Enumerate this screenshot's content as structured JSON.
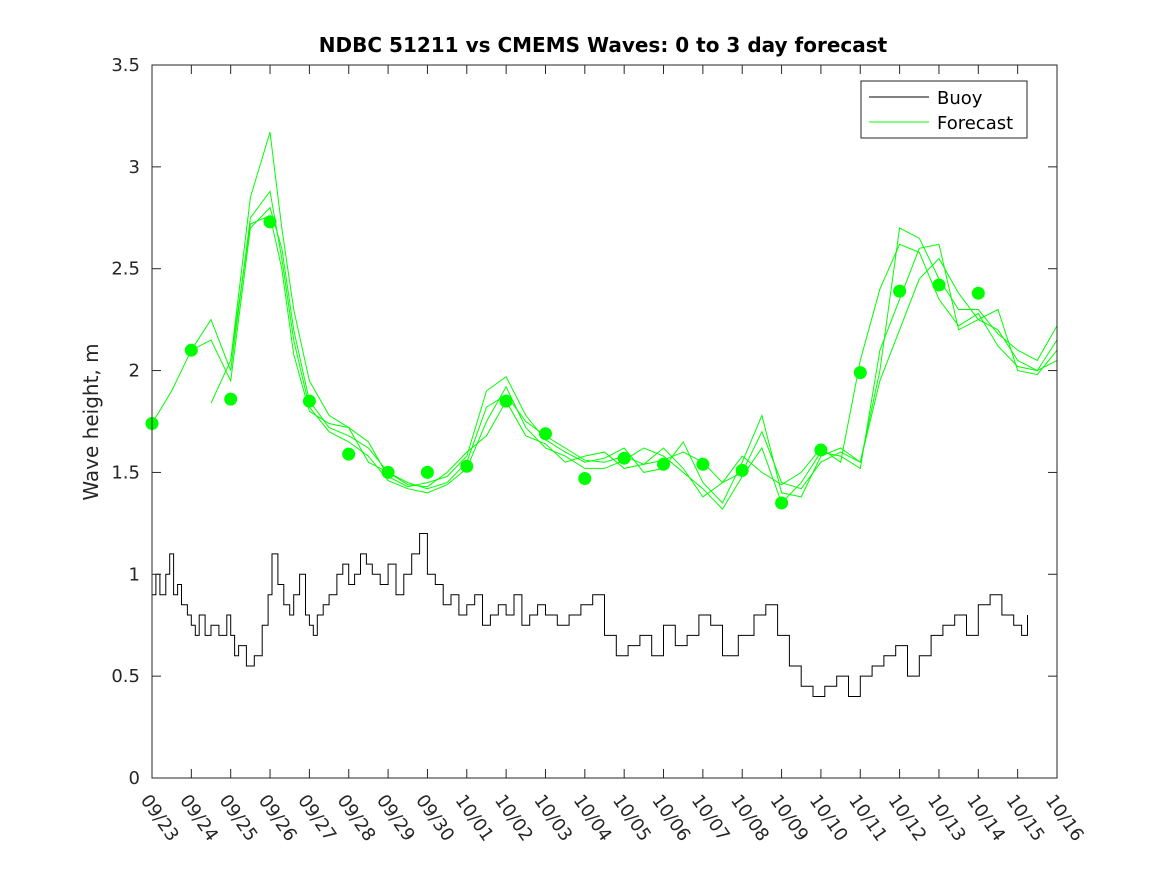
{
  "chart_data": {
    "type": "line",
    "title": "NDBC 51211 vs CMEMS Waves: 0 to 3 day forecast",
    "xlabel": "",
    "ylabel": "Wave height, m",
    "xlim": [
      "09/23",
      "10/16"
    ],
    "ylim": [
      0,
      3.5
    ],
    "yticks": [
      "0",
      "0.5",
      "1",
      "1.5",
      "2",
      "2.5",
      "3",
      "3.5"
    ],
    "xticks": [
      "09/23",
      "09/24",
      "09/25",
      "09/26",
      "09/27",
      "09/28",
      "09/29",
      "09/30",
      "10/01",
      "10/02",
      "10/03",
      "10/04",
      "10/05",
      "10/06",
      "10/07",
      "10/08",
      "10/09",
      "10/10",
      "10/11",
      "10/12",
      "10/13",
      "10/14",
      "10/15",
      "10/16"
    ],
    "grid": false,
    "legend": {
      "position": "top-right",
      "entries": [
        "Buoy",
        "Forecast"
      ]
    },
    "colors": {
      "buoy": "#000000",
      "forecast": "#00ff00"
    },
    "series": [
      {
        "name": "Buoy",
        "style": "step",
        "x": [
          0,
          0.1,
          0.2,
          0.35,
          0.45,
          0.55,
          0.65,
          0.75,
          0.9,
          1.0,
          1.1,
          1.2,
          1.35,
          1.5,
          1.7,
          1.9,
          2.0,
          2.1,
          2.2,
          2.4,
          2.6,
          2.8,
          2.95,
          3.05,
          3.2,
          3.35,
          3.5,
          3.6,
          3.75,
          3.9,
          4.0,
          4.1,
          4.2,
          4.35,
          4.5,
          4.7,
          4.85,
          5.0,
          5.15,
          5.3,
          5.45,
          5.6,
          5.8,
          6.0,
          6.2,
          6.4,
          6.6,
          6.8,
          7.0,
          7.2,
          7.4,
          7.6,
          7.8,
          8.0,
          8.2,
          8.4,
          8.6,
          8.8,
          9.0,
          9.2,
          9.4,
          9.6,
          9.8,
          10.0,
          10.3,
          10.6,
          10.9,
          11.2,
          11.5,
          11.8,
          12.1,
          12.4,
          12.7,
          13.0,
          13.3,
          13.6,
          13.9,
          14.2,
          14.5,
          14.9,
          15.3,
          15.6,
          15.9,
          16.2,
          16.5,
          16.8,
          17.1,
          17.4,
          17.7,
          18.0,
          18.3,
          18.6,
          18.9,
          19.2,
          19.5,
          19.8,
          20.1,
          20.4,
          20.7,
          21.0,
          21.3,
          21.6,
          21.9,
          22.1,
          22.25
        ],
        "y": [
          0.9,
          1.0,
          0.9,
          1.0,
          1.1,
          0.9,
          0.95,
          0.85,
          0.8,
          0.75,
          0.7,
          0.8,
          0.7,
          0.75,
          0.7,
          0.8,
          0.7,
          0.6,
          0.65,
          0.55,
          0.6,
          0.75,
          0.9,
          1.1,
          0.95,
          0.85,
          0.8,
          0.9,
          1.0,
          0.8,
          0.75,
          0.7,
          0.8,
          0.85,
          0.9,
          1.0,
          1.05,
          0.95,
          1.0,
          1.1,
          1.05,
          1.0,
          0.95,
          1.05,
          0.9,
          1.0,
          1.1,
          1.2,
          1.0,
          0.95,
          0.85,
          0.9,
          0.8,
          0.85,
          0.9,
          0.75,
          0.8,
          0.85,
          0.8,
          0.9,
          0.75,
          0.8,
          0.85,
          0.8,
          0.75,
          0.8,
          0.85,
          0.9,
          0.7,
          0.6,
          0.65,
          0.7,
          0.6,
          0.75,
          0.65,
          0.7,
          0.8,
          0.75,
          0.6,
          0.7,
          0.8,
          0.85,
          0.7,
          0.55,
          0.45,
          0.4,
          0.45,
          0.5,
          0.4,
          0.5,
          0.55,
          0.6,
          0.65,
          0.5,
          0.6,
          0.7,
          0.75,
          0.8,
          0.7,
          0.85,
          0.9,
          0.8,
          0.75,
          0.7,
          0.8
        ]
      },
      {
        "name": "Forecast",
        "x": [
          0,
          0.5,
          1.0,
          1.5,
          2.0,
          2.5,
          3.0,
          3.3,
          3.6,
          4.0,
          4.5,
          5.0,
          5.5,
          6.0,
          6.5,
          7.0,
          7.5,
          8.0,
          8.5,
          9.0,
          9.5,
          10.0,
          10.5,
          11.0,
          11.5,
          12.0,
          12.5,
          13.0,
          13.5,
          14.0,
          14.5,
          15.0,
          15.5,
          16.0,
          16.5,
          17.0,
          17.5,
          18.0,
          18.5,
          19.0,
          19.5,
          20.0,
          20.5,
          21.0,
          21.5,
          22.0,
          22.5,
          23.0
        ],
        "y": [
          1.74,
          1.9,
          2.1,
          2.15,
          1.95,
          2.7,
          2.8,
          2.6,
          2.2,
          1.85,
          1.72,
          1.68,
          1.62,
          1.5,
          1.45,
          1.42,
          1.45,
          1.55,
          1.82,
          1.88,
          1.75,
          1.68,
          1.62,
          1.56,
          1.55,
          1.58,
          1.54,
          1.56,
          1.6,
          1.55,
          1.45,
          1.5,
          1.7,
          1.45,
          1.42,
          1.55,
          1.6,
          1.55,
          1.95,
          2.2,
          2.45,
          2.55,
          2.38,
          2.25,
          2.2,
          2.05,
          2.0,
          2.15
        ]
      },
      {
        "name": "Forecast",
        "x": [
          2.0,
          2.5,
          3.0,
          3.3,
          3.6,
          4.0,
          4.5,
          5.0,
          5.5,
          6.0,
          6.5,
          7.0,
          7.5,
          8.0,
          8.5,
          9.0,
          9.5,
          10.0,
          10.5,
          11.0,
          11.5,
          12.0,
          12.5,
          13.0,
          13.5,
          14.0,
          14.5,
          15.0,
          15.5,
          16.0,
          16.5,
          17.0,
          17.5,
          18.0,
          18.5,
          19.0,
          19.5,
          20.0,
          20.5,
          21.0,
          21.5,
          22.0,
          22.5,
          23.0
        ],
        "y": [
          2.05,
          2.85,
          3.17,
          2.7,
          2.3,
          1.95,
          1.78,
          1.72,
          1.65,
          1.48,
          1.43,
          1.45,
          1.48,
          1.58,
          1.9,
          1.97,
          1.78,
          1.66,
          1.6,
          1.55,
          1.57,
          1.62,
          1.5,
          1.52,
          1.65,
          1.45,
          1.35,
          1.55,
          1.78,
          1.4,
          1.38,
          1.58,
          1.62,
          1.55,
          2.0,
          2.7,
          2.65,
          2.45,
          2.3,
          2.3,
          2.18,
          2.1,
          2.05,
          2.22
        ]
      },
      {
        "name": "Forecast",
        "x": [
          1.0,
          1.5,
          2.0,
          2.5,
          3.0,
          3.3,
          3.6,
          4.0,
          4.5,
          5.0,
          5.5,
          6.0,
          6.5,
          7.0,
          7.5,
          8.0,
          8.5,
          9.0,
          9.5,
          10.0,
          10.5,
          11.0,
          11.5,
          12.0,
          12.5,
          13.0,
          13.5,
          14.0,
          14.5,
          15.0,
          15.5,
          16.0,
          16.5,
          17.0,
          17.5,
          18.0,
          18.5,
          19.0,
          19.5,
          20.0,
          20.5,
          21.0,
          21.5,
          22.0,
          22.5,
          23.0
        ],
        "y": [
          2.1,
          2.25,
          2.0,
          2.75,
          2.88,
          2.55,
          2.15,
          1.82,
          1.7,
          1.65,
          1.58,
          1.46,
          1.42,
          1.4,
          1.44,
          1.52,
          1.75,
          1.92,
          1.72,
          1.62,
          1.58,
          1.52,
          1.52,
          1.56,
          1.62,
          1.58,
          1.5,
          1.42,
          1.32,
          1.48,
          1.62,
          1.35,
          1.45,
          1.6,
          1.58,
          1.52,
          2.1,
          2.35,
          2.6,
          2.62,
          2.2,
          2.25,
          2.3,
          2.0,
          1.98,
          2.1
        ]
      },
      {
        "name": "Forecast",
        "x": [
          1.5,
          2.0,
          2.5,
          3.0,
          3.3,
          3.6,
          4.0,
          4.5,
          5.0,
          5.5,
          6.0,
          6.5,
          7.0,
          7.5,
          8.0,
          8.5,
          9.0,
          9.5,
          10.0,
          10.5,
          11.0,
          11.5,
          12.0,
          12.5,
          13.0,
          13.5,
          14.0,
          14.5,
          15.0,
          15.5,
          16.0,
          16.5,
          17.0,
          17.5,
          18.0,
          18.5,
          19.0,
          19.5,
          20.0,
          20.5,
          21.0,
          21.5,
          22.0,
          22.5,
          23.0
        ],
        "y": [
          1.84,
          2.05,
          2.72,
          2.76,
          2.5,
          2.08,
          1.8,
          1.74,
          1.72,
          1.55,
          1.5,
          1.44,
          1.43,
          1.5,
          1.6,
          1.68,
          1.85,
          1.68,
          1.64,
          1.55,
          1.58,
          1.6,
          1.52,
          1.54,
          1.62,
          1.52,
          1.38,
          1.45,
          1.58,
          1.5,
          1.44,
          1.5,
          1.62,
          1.55,
          2.05,
          2.4,
          2.62,
          2.58,
          2.35,
          2.22,
          2.28,
          2.12,
          2.02,
          2.0,
          2.05
        ]
      }
    ],
    "markers": {
      "name": "Forecast",
      "x": [
        0,
        1,
        2,
        3,
        4,
        5,
        6,
        7,
        8,
        9,
        10,
        11,
        12,
        13,
        14,
        15,
        16,
        17,
        18,
        19,
        20,
        21
      ],
      "y": [
        1.74,
        2.1,
        1.86,
        2.73,
        1.85,
        1.59,
        1.5,
        1.5,
        1.53,
        1.85,
        1.69,
        1.47,
        1.57,
        1.54,
        1.54,
        1.51,
        1.35,
        1.61,
        1.99,
        2.39,
        2.42,
        2.38
      ]
    }
  }
}
